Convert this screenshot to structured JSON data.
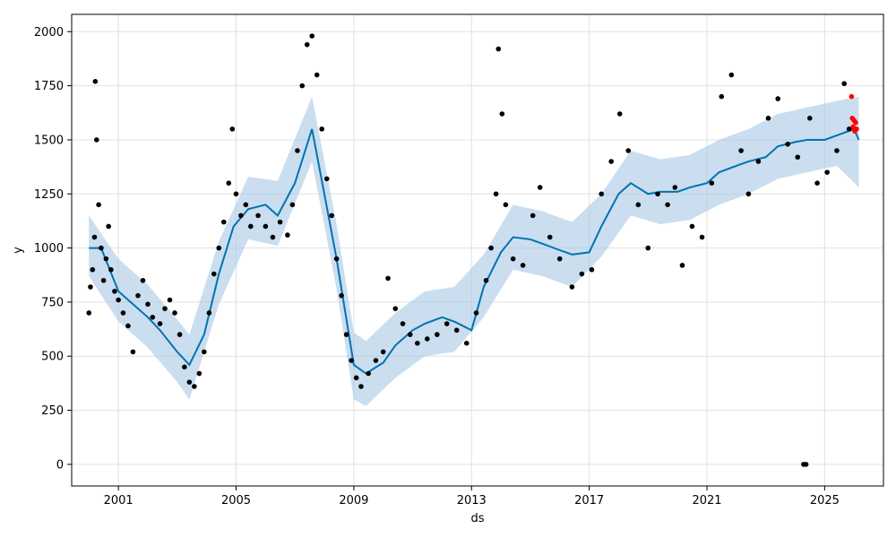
{
  "chart_data": {
    "type": "scatter",
    "title": "",
    "xlabel": "ds",
    "ylabel": "y",
    "x_axis": {
      "type": "date",
      "range": [
        "1999-06-01",
        "2027-01-01"
      ],
      "ticks": [
        "2001",
        "2005",
        "2009",
        "2013",
        "2017",
        "2021",
        "2025"
      ]
    },
    "y_axis": {
      "range": [
        -100,
        2080
      ],
      "ticks": [
        "0",
        "250",
        "500",
        "750",
        "1000",
        "1250",
        "1500",
        "1750",
        "2000"
      ]
    },
    "grid": true,
    "legend": "none",
    "colors": {
      "observed": "#000000",
      "forecast_line": "#0072B2",
      "uncertainty_band": "#a6c8e4",
      "test_points": "#ff0000",
      "grid": "#e0e0e0"
    },
    "series": [
      {
        "role": "observed",
        "points": [
          [
            "2000-01-01",
            700
          ],
          [
            "2000-01-20",
            820
          ],
          [
            "2000-02-15",
            900
          ],
          [
            "2000-03-10",
            1050
          ],
          [
            "2000-03-20",
            1770
          ],
          [
            "2000-04-05",
            1500
          ],
          [
            "2000-05-01",
            1200
          ],
          [
            "2000-06-01",
            1000
          ],
          [
            "2000-07-01",
            850
          ],
          [
            "2000-08-01",
            950
          ],
          [
            "2000-09-01",
            1100
          ],
          [
            "2000-10-01",
            900
          ],
          [
            "2000-11-15",
            800
          ],
          [
            "2001-01-01",
            760
          ],
          [
            "2001-03-01",
            700
          ],
          [
            "2001-05-01",
            640
          ],
          [
            "2001-07-01",
            520
          ],
          [
            "2001-09-01",
            780
          ],
          [
            "2001-11-01",
            850
          ],
          [
            "2002-01-01",
            740
          ],
          [
            "2002-03-01",
            680
          ],
          [
            "2002-06-01",
            650
          ],
          [
            "2002-08-01",
            720
          ],
          [
            "2002-10-01",
            760
          ],
          [
            "2002-12-01",
            700
          ],
          [
            "2003-02-01",
            600
          ],
          [
            "2003-04-01",
            450
          ],
          [
            "2003-06-01",
            380
          ],
          [
            "2003-08-01",
            360
          ],
          [
            "2003-10-01",
            420
          ],
          [
            "2003-12-01",
            520
          ],
          [
            "2004-02-01",
            700
          ],
          [
            "2004-04-01",
            880
          ],
          [
            "2004-06-01",
            1000
          ],
          [
            "2004-08-01",
            1120
          ],
          [
            "2004-10-01",
            1300
          ],
          [
            "2004-11-15",
            1550
          ],
          [
            "2005-01-01",
            1250
          ],
          [
            "2005-03-01",
            1150
          ],
          [
            "2005-05-01",
            1200
          ],
          [
            "2005-07-01",
            1100
          ],
          [
            "2005-10-01",
            1150
          ],
          [
            "2006-01-01",
            1100
          ],
          [
            "2006-04-01",
            1050
          ],
          [
            "2006-07-01",
            1120
          ],
          [
            "2006-10-01",
            1060
          ],
          [
            "2006-12-01",
            1200
          ],
          [
            "2007-02-01",
            1450
          ],
          [
            "2007-04-01",
            1750
          ],
          [
            "2007-06-01",
            1940
          ],
          [
            "2007-08-01",
            1980
          ],
          [
            "2007-10-01",
            1800
          ],
          [
            "2007-12-01",
            1550
          ],
          [
            "2008-02-01",
            1320
          ],
          [
            "2008-04-01",
            1150
          ],
          [
            "2008-06-01",
            950
          ],
          [
            "2008-08-01",
            780
          ],
          [
            "2008-10-01",
            600
          ],
          [
            "2008-12-01",
            480
          ],
          [
            "2009-02-01",
            400
          ],
          [
            "2009-04-01",
            360
          ],
          [
            "2009-07-01",
            420
          ],
          [
            "2009-10-01",
            480
          ],
          [
            "2010-01-01",
            520
          ],
          [
            "2010-03-01",
            860
          ],
          [
            "2010-06-01",
            720
          ],
          [
            "2010-09-01",
            650
          ],
          [
            "2010-12-01",
            600
          ],
          [
            "2011-03-01",
            560
          ],
          [
            "2011-07-01",
            580
          ],
          [
            "2011-11-01",
            600
          ],
          [
            "2012-03-01",
            650
          ],
          [
            "2012-07-01",
            620
          ],
          [
            "2012-11-01",
            560
          ],
          [
            "2013-03-01",
            700
          ],
          [
            "2013-07-01",
            850
          ],
          [
            "2013-09-01",
            1000
          ],
          [
            "2013-11-01",
            1250
          ],
          [
            "2013-12-01",
            1920
          ],
          [
            "2014-01-15",
            1620
          ],
          [
            "2014-03-01",
            1200
          ],
          [
            "2014-06-01",
            950
          ],
          [
            "2014-10-01",
            920
          ],
          [
            "2015-02-01",
            1150
          ],
          [
            "2015-05-01",
            1280
          ],
          [
            "2015-09-01",
            1050
          ],
          [
            "2016-01-01",
            950
          ],
          [
            "2016-06-01",
            820
          ],
          [
            "2016-10-01",
            880
          ],
          [
            "2017-02-01",
            900
          ],
          [
            "2017-06-01",
            1250
          ],
          [
            "2017-10-01",
            1400
          ],
          [
            "2018-01-15",
            1620
          ],
          [
            "2018-05-01",
            1450
          ],
          [
            "2018-09-01",
            1200
          ],
          [
            "2019-01-01",
            1000
          ],
          [
            "2019-05-01",
            1250
          ],
          [
            "2019-09-01",
            1200
          ],
          [
            "2019-12-01",
            1280
          ],
          [
            "2020-03-01",
            920
          ],
          [
            "2020-07-01",
            1100
          ],
          [
            "2020-11-01",
            1050
          ],
          [
            "2021-03-01",
            1300
          ],
          [
            "2021-07-01",
            1700
          ],
          [
            "2021-11-01",
            1800
          ],
          [
            "2022-03-01",
            1450
          ],
          [
            "2022-06-01",
            1250
          ],
          [
            "2022-10-01",
            1400
          ],
          [
            "2023-02-01",
            1600
          ],
          [
            "2023-06-01",
            1690
          ],
          [
            "2023-10-01",
            1480
          ],
          [
            "2024-02-01",
            1420
          ],
          [
            "2024-04-15",
            0
          ],
          [
            "2024-05-15",
            0
          ],
          [
            "2024-07-01",
            1600
          ],
          [
            "2024-10-01",
            1300
          ],
          [
            "2025-02-01",
            1350
          ],
          [
            "2025-06-01",
            1450
          ],
          [
            "2025-09-01",
            1760
          ],
          [
            "2025-11-01",
            1550
          ]
        ]
      },
      {
        "role": "forecast_line",
        "points": [
          [
            "2000-01-01",
            1000
          ],
          [
            "2000-06-01",
            1000
          ],
          [
            "2001-01-01",
            800
          ],
          [
            "2001-06-01",
            750
          ],
          [
            "2002-01-01",
            680
          ],
          [
            "2002-06-01",
            620
          ],
          [
            "2003-01-01",
            520
          ],
          [
            "2003-06-01",
            460
          ],
          [
            "2003-12-01",
            600
          ],
          [
            "2004-06-01",
            880
          ],
          [
            "2004-12-01",
            1100
          ],
          [
            "2005-06-01",
            1180
          ],
          [
            "2006-01-01",
            1200
          ],
          [
            "2006-06-01",
            1150
          ],
          [
            "2007-01-01",
            1300
          ],
          [
            "2007-08-01",
            1550
          ],
          [
            "2008-01-01",
            1250
          ],
          [
            "2008-06-01",
            950
          ],
          [
            "2009-01-01",
            460
          ],
          [
            "2009-06-01",
            420
          ],
          [
            "2010-01-01",
            470
          ],
          [
            "2010-06-01",
            550
          ],
          [
            "2011-01-01",
            620
          ],
          [
            "2011-06-01",
            650
          ],
          [
            "2012-01-01",
            680
          ],
          [
            "2012-06-01",
            660
          ],
          [
            "2013-01-01",
            620
          ],
          [
            "2013-06-01",
            820
          ],
          [
            "2014-01-01",
            980
          ],
          [
            "2014-06-01",
            1050
          ],
          [
            "2015-01-01",
            1040
          ],
          [
            "2015-06-01",
            1020
          ],
          [
            "2016-01-01",
            990
          ],
          [
            "2016-06-01",
            970
          ],
          [
            "2017-01-01",
            980
          ],
          [
            "2017-06-01",
            1100
          ],
          [
            "2018-01-01",
            1250
          ],
          [
            "2018-06-01",
            1300
          ],
          [
            "2019-01-01",
            1250
          ],
          [
            "2019-06-01",
            1260
          ],
          [
            "2020-01-01",
            1260
          ],
          [
            "2020-06-01",
            1280
          ],
          [
            "2021-01-01",
            1300
          ],
          [
            "2021-06-01",
            1350
          ],
          [
            "2022-01-01",
            1380
          ],
          [
            "2022-06-01",
            1400
          ],
          [
            "2023-01-01",
            1420
          ],
          [
            "2023-06-01",
            1470
          ],
          [
            "2024-01-01",
            1490
          ],
          [
            "2024-06-01",
            1500
          ],
          [
            "2025-01-01",
            1500
          ],
          [
            "2025-06-01",
            1520
          ],
          [
            "2026-01-01",
            1550
          ],
          [
            "2026-03-01",
            1500
          ]
        ]
      },
      {
        "role": "uncertainty_band",
        "note": "upper and lower bounds around forecast",
        "points": [
          [
            "2000-01-01",
            1150,
            870
          ],
          [
            "2001-01-01",
            950,
            660
          ],
          [
            "2002-01-01",
            830,
            540
          ],
          [
            "2003-01-01",
            670,
            380
          ],
          [
            "2003-06-01",
            600,
            300
          ],
          [
            "2004-06-01",
            1030,
            740
          ],
          [
            "2005-06-01",
            1330,
            1040
          ],
          [
            "2006-06-01",
            1310,
            1010
          ],
          [
            "2007-08-01",
            1700,
            1400
          ],
          [
            "2008-06-01",
            1110,
            810
          ],
          [
            "2009-01-01",
            610,
            300
          ],
          [
            "2009-06-01",
            570,
            270
          ],
          [
            "2010-06-01",
            700,
            400
          ],
          [
            "2011-06-01",
            800,
            500
          ],
          [
            "2012-06-01",
            820,
            520
          ],
          [
            "2013-06-01",
            970,
            680
          ],
          [
            "2014-06-01",
            1200,
            900
          ],
          [
            "2015-06-01",
            1170,
            870
          ],
          [
            "2016-06-01",
            1120,
            820
          ],
          [
            "2017-06-01",
            1250,
            960
          ],
          [
            "2018-06-01",
            1450,
            1150
          ],
          [
            "2019-06-01",
            1410,
            1110
          ],
          [
            "2020-06-01",
            1430,
            1130
          ],
          [
            "2021-06-01",
            1500,
            1200
          ],
          [
            "2022-06-01",
            1550,
            1250
          ],
          [
            "2023-06-01",
            1620,
            1320
          ],
          [
            "2024-06-01",
            1650,
            1350
          ],
          [
            "2025-06-01",
            1680,
            1380
          ],
          [
            "2026-03-01",
            1700,
            1280
          ]
        ]
      },
      {
        "role": "test_points",
        "points": [
          [
            "2025-12-01",
            1700
          ],
          [
            "2025-12-10",
            1600
          ],
          [
            "2025-12-20",
            1560
          ],
          [
            "2026-01-01",
            1590
          ],
          [
            "2026-01-10",
            1540
          ],
          [
            "2026-01-20",
            1580
          ],
          [
            "2026-02-01",
            1550
          ]
        ]
      }
    ]
  }
}
